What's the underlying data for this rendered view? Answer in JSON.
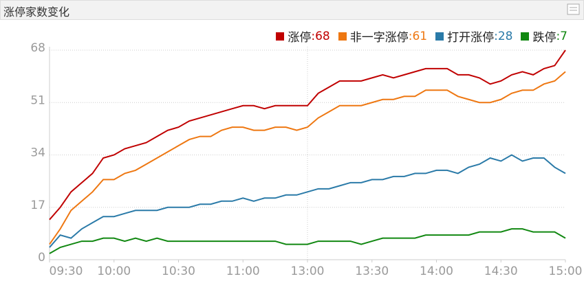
{
  "chart_data": {
    "type": "line",
    "title": "涨停家数变化",
    "x": [
      0,
      5,
      10,
      15,
      20,
      25,
      30,
      35,
      40,
      45,
      50,
      55,
      60,
      65,
      70,
      75,
      80,
      85,
      90,
      95,
      100,
      105,
      110,
      115,
      120,
      125,
      130,
      135,
      140,
      145,
      150,
      155,
      160,
      165,
      170,
      175,
      180,
      185,
      190,
      195,
      200,
      205,
      210,
      215,
      220,
      225,
      230,
      235,
      240
    ],
    "xlim": [
      0,
      240
    ],
    "xticks": [
      {
        "value": 0,
        "label": "09:30"
      },
      {
        "value": 30,
        "label": "10:00"
      },
      {
        "value": 60,
        "label": "10:30"
      },
      {
        "value": 90,
        "label": "11:00"
      },
      {
        "value": 120,
        "label": "13:00"
      },
      {
        "value": 150,
        "label": "13:30"
      },
      {
        "value": 180,
        "label": "14:00"
      },
      {
        "value": 210,
        "label": "14:30"
      },
      {
        "value": 240,
        "label": "15:00"
      }
    ],
    "ylim": [
      0,
      68
    ],
    "yticks": [
      0,
      17,
      34,
      51,
      68
    ],
    "grid": true,
    "series": [
      {
        "name": "涨停",
        "legend_value": ":68",
        "color": "#c00000",
        "values": [
          13,
          17,
          22,
          25,
          28,
          33,
          34,
          36,
          37,
          38,
          40,
          42,
          43,
          45,
          46,
          47,
          48,
          49,
          50,
          50,
          49,
          50,
          50,
          50,
          50,
          54,
          56,
          58,
          58,
          58,
          59,
          60,
          59,
          60,
          61,
          62,
          62,
          62,
          60,
          60,
          59,
          57,
          58,
          60,
          61,
          60,
          62,
          63,
          68
        ]
      },
      {
        "name": "非一字涨停",
        "legend_value": ":61",
        "color": "#ee7711",
        "values": [
          5,
          10,
          16,
          19,
          22,
          26,
          26,
          28,
          29,
          31,
          33,
          35,
          37,
          39,
          40,
          40,
          42,
          43,
          43,
          42,
          42,
          43,
          43,
          42,
          43,
          46,
          48,
          50,
          50,
          50,
          51,
          52,
          52,
          53,
          53,
          55,
          55,
          55,
          53,
          52,
          51,
          51,
          52,
          54,
          55,
          55,
          57,
          58,
          61
        ]
      },
      {
        "name": "打开涨停",
        "legend_value": ":28",
        "color": "#2a7aa8",
        "values": [
          4,
          8,
          7,
          10,
          12,
          14,
          14,
          15,
          16,
          16,
          16,
          17,
          17,
          17,
          18,
          18,
          19,
          19,
          20,
          19,
          20,
          20,
          21,
          21,
          22,
          23,
          23,
          24,
          25,
          25,
          26,
          26,
          27,
          27,
          28,
          28,
          29,
          29,
          28,
          30,
          31,
          33,
          32,
          34,
          32,
          33,
          33,
          30,
          28
        ]
      },
      {
        "name": "跌停",
        "legend_value": ":7",
        "color": "#118811",
        "values": [
          2,
          4,
          5,
          6,
          6,
          7,
          7,
          6,
          7,
          6,
          7,
          6,
          6,
          6,
          6,
          6,
          6,
          6,
          6,
          6,
          6,
          6,
          5,
          5,
          5,
          6,
          6,
          6,
          6,
          5,
          6,
          7,
          7,
          7,
          7,
          8,
          8,
          8,
          8,
          8,
          9,
          9,
          9,
          10,
          10,
          9,
          9,
          9,
          7
        ]
      }
    ]
  }
}
